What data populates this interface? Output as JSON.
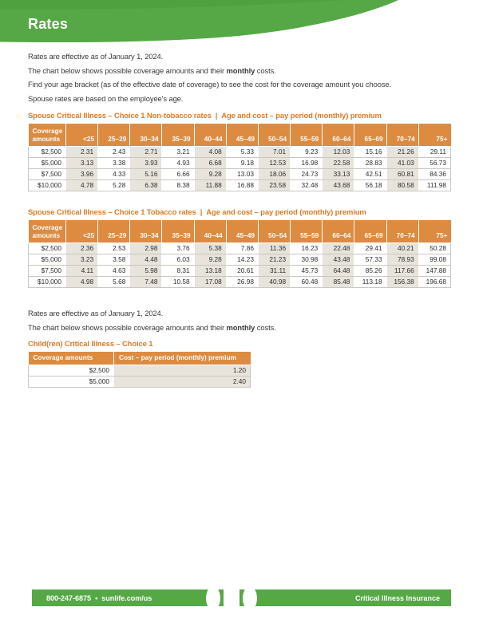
{
  "header": {
    "title": "Rates"
  },
  "intro": {
    "line1": "Rates are effective as of January 1, 2024.",
    "line2_pre": "The chart below shows possible coverage amounts and their ",
    "line2_bold": "monthly",
    "line2_post": " costs.",
    "line3": "Find your age bracket (as of the effective date of coverage) to see the cost for the coverage amount you choose.",
    "line4": "Spouse rates are based on the employee's age."
  },
  "spouse_nontobacco": {
    "title_main": "Spouse Critical Illness – Choice 1 Non-tobacco rates",
    "title_sep": "|",
    "title_sub": "Age and cost – pay period (monthly) premium",
    "columns": [
      "Coverage amounts",
      "<25",
      "25–29",
      "30–34",
      "35–39",
      "40–44",
      "45–49",
      "50–54",
      "55–59",
      "60–64",
      "65–69",
      "70–74",
      "75+"
    ],
    "rows": [
      [
        "$2,500",
        "2.31",
        "2.43",
        "2.71",
        "3.21",
        "4.08",
        "5.33",
        "7.01",
        "9.23",
        "12.03",
        "15.16",
        "21.26",
        "29.11"
      ],
      [
        "$5,000",
        "3.13",
        "3.38",
        "3.93",
        "4.93",
        "6.68",
        "9.18",
        "12.53",
        "16.98",
        "22.58",
        "28.83",
        "41.03",
        "56.73"
      ],
      [
        "$7,500",
        "3.96",
        "4.33",
        "5.16",
        "6.66",
        "9.28",
        "13.03",
        "18.06",
        "24.73",
        "33.13",
        "42.51",
        "60.81",
        "84.36"
      ],
      [
        "$10,000",
        "4.78",
        "5.28",
        "6.38",
        "8.38",
        "11.88",
        "16.88",
        "23.58",
        "32.48",
        "43.68",
        "56.18",
        "80.58",
        "111.98"
      ]
    ]
  },
  "spouse_tobacco": {
    "title_main": "Spouse Critical Illness – Choice 1 Tobacco rates",
    "title_sep": "|",
    "title_sub": "Age and cost – pay period (monthly) premium",
    "columns": [
      "Coverage amounts",
      "<25",
      "25–29",
      "30–34",
      "35–39",
      "40–44",
      "45–49",
      "50–54",
      "55–59",
      "60–64",
      "65–69",
      "70–74",
      "75+"
    ],
    "rows": [
      [
        "$2,500",
        "2.36",
        "2.53",
        "2.98",
        "3.76",
        "5.38",
        "7.86",
        "11.36",
        "16.23",
        "22.48",
        "29.41",
        "40.21",
        "50.28"
      ],
      [
        "$5,000",
        "3.23",
        "3.58",
        "4.48",
        "6.03",
        "9.28",
        "14.23",
        "21.23",
        "30.98",
        "43.48",
        "57.33",
        "78.93",
        "99.08"
      ],
      [
        "$7,500",
        "4.11",
        "4.63",
        "5.98",
        "8.31",
        "13.18",
        "20.61",
        "31.11",
        "45.73",
        "64.48",
        "85.26",
        "117.66",
        "147.88"
      ],
      [
        "$10,000",
        "4.98",
        "5.68",
        "7.48",
        "10.58",
        "17.08",
        "26.98",
        "40.98",
        "60.48",
        "85.48",
        "113.18",
        "156.38",
        "196.68"
      ]
    ]
  },
  "child": {
    "intro_line1": "Rates are effective as of January 1, 2024.",
    "intro_line2_pre": "The chart below shows possible coverage amounts and their ",
    "intro_line2_bold": "monthly",
    "intro_line2_post": " costs.",
    "title": "Child(ren) Critical Illness – Choice 1",
    "columns": [
      "Coverage amounts",
      "Cost – pay period (monthly) premium"
    ],
    "rows": [
      [
        "$2,500",
        "1.20"
      ],
      [
        "$5,000",
        "2.40"
      ]
    ]
  },
  "footer": {
    "phone": "800-247-6875",
    "bullet": "•",
    "website": "sunlife.com/us",
    "product": "Critical Illness Insurance"
  },
  "colors": {
    "green": "#55a845",
    "green_dark": "#4a9a3a",
    "orange_title": "#de7b26",
    "orange_header": "#dc8b41",
    "beige": "#e8e4db",
    "text": "#3a3a3a",
    "border": "#c9c7c1"
  }
}
